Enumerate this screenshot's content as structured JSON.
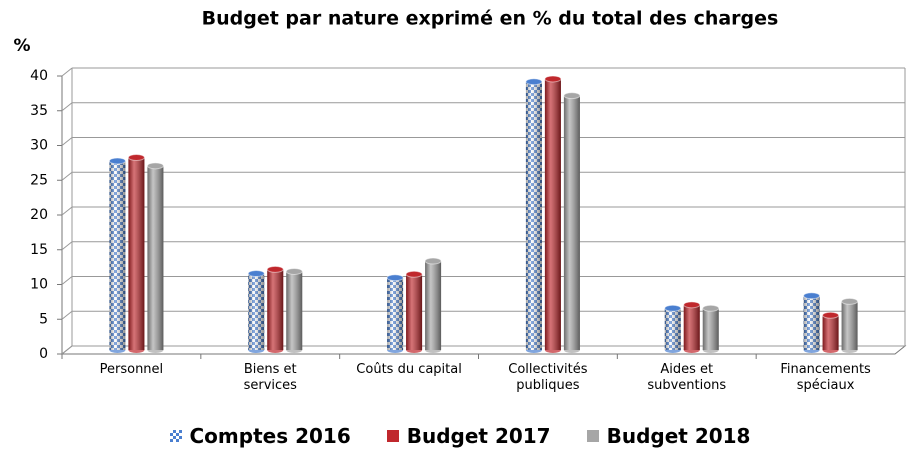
{
  "chart_data": {
    "type": "bar",
    "title": "Budget par nature exprimé en % du total des charges",
    "y_label": "%",
    "categories": [
      "Personnel",
      "Biens et services",
      "Coûts du capital",
      "Collectivités publiques",
      "Aides et subventions",
      "Financements spéciaux"
    ],
    "series": [
      {
        "name": "Comptes 2016",
        "color": "#4a7fd0",
        "pattern": "checker",
        "values": [
          27.2,
          11.0,
          10.4,
          38.6,
          6.0,
          7.8
        ]
      },
      {
        "name": "Budget 2017",
        "color": "#c0282d",
        "values": [
          27.7,
          11.6,
          10.9,
          39.0,
          6.5,
          5.0
        ]
      },
      {
        "name": "Budget 2018",
        "color": "#a6a6a6",
        "values": [
          26.5,
          11.3,
          12.8,
          36.6,
          6.0,
          7.0
        ]
      }
    ],
    "ylim": [
      0,
      40
    ],
    "yticks": [
      0,
      5,
      10,
      15,
      20,
      25,
      30,
      35,
      40
    ],
    "grid": true,
    "legend": "bottom"
  }
}
